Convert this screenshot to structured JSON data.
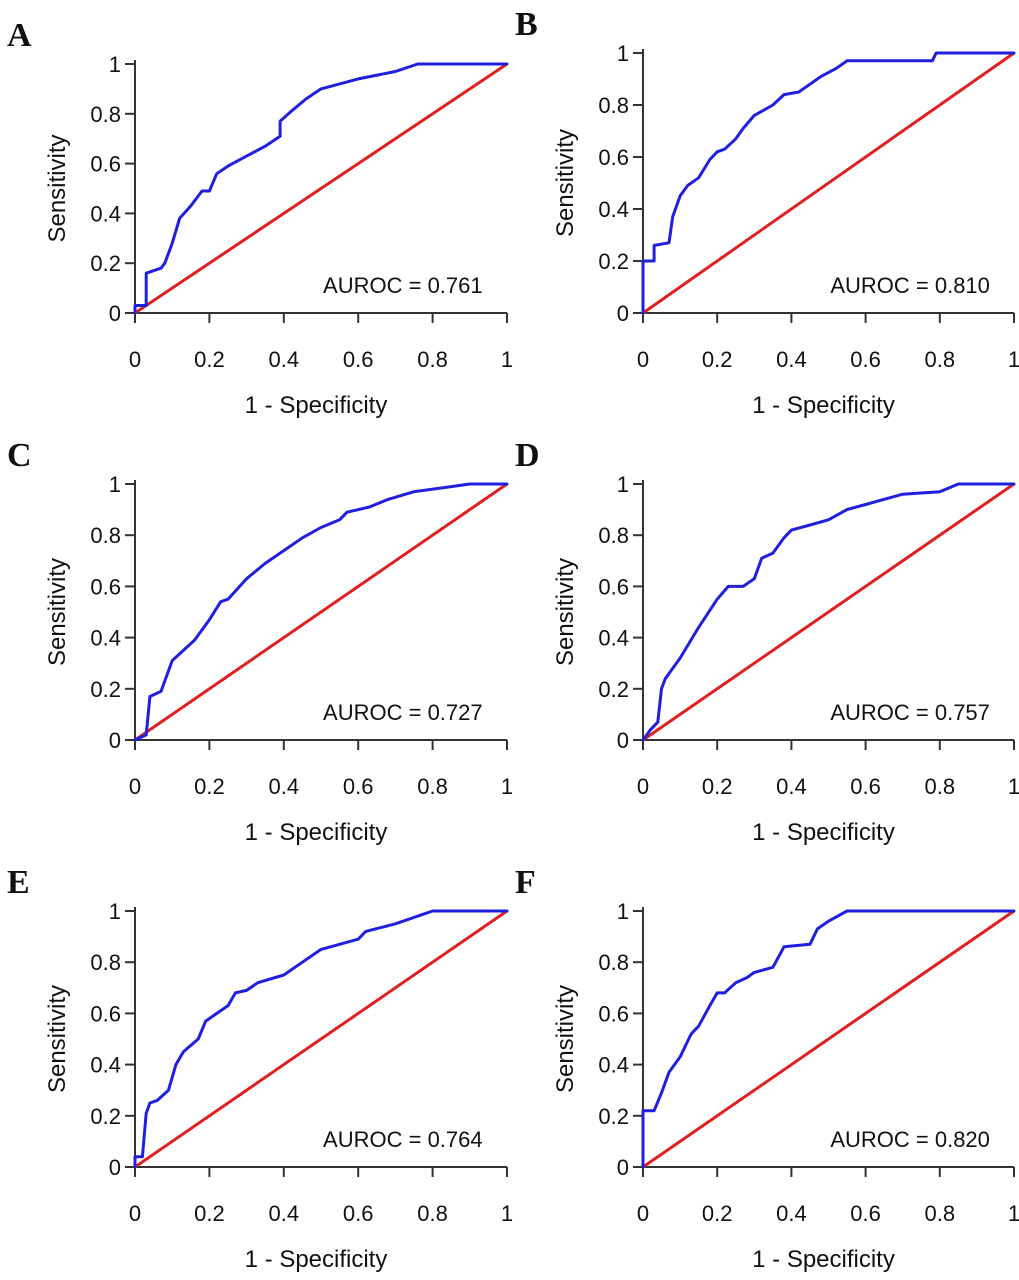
{
  "colors": {
    "roc": "#1f1fe0",
    "reference": "#e02020",
    "axis": "#333333"
  },
  "chart_data": [
    {
      "type": "line",
      "panel": "A",
      "annotation": "AUROC = 0.761",
      "xlabel": "1 - Specificity",
      "ylabel": "Sensitivity",
      "xlim": [
        0,
        1
      ],
      "ylim": [
        0,
        1
      ],
      "xticks": [
        "0",
        "0.2",
        "0.4",
        "0.6",
        "0.8",
        "1"
      ],
      "yticks": [
        "0",
        "0.2",
        "0.4",
        "0.6",
        "0.8",
        "1"
      ],
      "grid": false,
      "series": [
        {
          "values": [
            [
              0,
              0
            ],
            [
              0,
              0.03
            ],
            [
              0.03,
              0.03
            ],
            [
              0.03,
              0.16
            ],
            [
              0.05,
              0.17
            ],
            [
              0.07,
              0.18
            ],
            [
              0.08,
              0.2
            ],
            [
              0.1,
              0.28
            ],
            [
              0.12,
              0.38
            ],
            [
              0.15,
              0.43
            ],
            [
              0.18,
              0.49
            ],
            [
              0.2,
              0.49
            ],
            [
              0.22,
              0.56
            ],
            [
              0.25,
              0.59
            ],
            [
              0.3,
              0.63
            ],
            [
              0.35,
              0.67
            ],
            [
              0.39,
              0.71
            ],
            [
              0.39,
              0.77
            ],
            [
              0.42,
              0.81
            ],
            [
              0.46,
              0.86
            ],
            [
              0.5,
              0.9
            ],
            [
              0.55,
              0.92
            ],
            [
              0.6,
              0.94
            ],
            [
              0.7,
              0.97
            ],
            [
              0.76,
              1
            ],
            [
              1,
              1
            ]
          ]
        },
        {
          "values": [
            [
              0,
              0
            ],
            [
              1,
              1
            ]
          ]
        }
      ]
    },
    {
      "type": "line",
      "panel": "B",
      "annotation": "AUROC = 0.810",
      "xlabel": "1 - Specificity",
      "ylabel": "Sensitivity",
      "xlim": [
        0,
        1
      ],
      "ylim": [
        0,
        1
      ],
      "xticks": [
        "0",
        "0.2",
        "0.4",
        "0.6",
        "0.8",
        "1"
      ],
      "yticks": [
        "0",
        "0.2",
        "0.4",
        "0.6",
        "0.8",
        "1"
      ],
      "grid": false,
      "series": [
        {
          "values": [
            [
              0,
              0
            ],
            [
              0,
              0.2
            ],
            [
              0.03,
              0.2
            ],
            [
              0.03,
              0.26
            ],
            [
              0.07,
              0.27
            ],
            [
              0.08,
              0.37
            ],
            [
              0.1,
              0.45
            ],
            [
              0.12,
              0.49
            ],
            [
              0.15,
              0.52
            ],
            [
              0.18,
              0.59
            ],
            [
              0.2,
              0.62
            ],
            [
              0.22,
              0.63
            ],
            [
              0.25,
              0.67
            ],
            [
              0.27,
              0.71
            ],
            [
              0.3,
              0.76
            ],
            [
              0.35,
              0.8
            ],
            [
              0.38,
              0.84
            ],
            [
              0.42,
              0.85
            ],
            [
              0.45,
              0.88
            ],
            [
              0.48,
              0.91
            ],
            [
              0.52,
              0.94
            ],
            [
              0.55,
              0.97
            ],
            [
              0.78,
              0.97
            ],
            [
              0.79,
              1
            ],
            [
              1,
              1
            ]
          ]
        },
        {
          "values": [
            [
              0,
              0
            ],
            [
              1,
              1
            ]
          ]
        }
      ]
    },
    {
      "type": "line",
      "panel": "C",
      "annotation": "AUROC = 0.727",
      "xlabel": "1 - Specificity",
      "ylabel": "Sensitivity",
      "xlim": [
        0,
        1
      ],
      "ylim": [
        0,
        1
      ],
      "xticks": [
        "0",
        "0.2",
        "0.4",
        "0.6",
        "0.8",
        "1"
      ],
      "yticks": [
        "0",
        "0.2",
        "0.4",
        "0.6",
        "0.8",
        "1"
      ],
      "grid": false,
      "series": [
        {
          "values": [
            [
              0,
              0
            ],
            [
              0.03,
              0.02
            ],
            [
              0.04,
              0.17
            ],
            [
              0.07,
              0.19
            ],
            [
              0.09,
              0.27
            ],
            [
              0.1,
              0.31
            ],
            [
              0.13,
              0.35
            ],
            [
              0.16,
              0.39
            ],
            [
              0.2,
              0.47
            ],
            [
              0.23,
              0.54
            ],
            [
              0.25,
              0.55
            ],
            [
              0.3,
              0.63
            ],
            [
              0.35,
              0.69
            ],
            [
              0.4,
              0.74
            ],
            [
              0.45,
              0.79
            ],
            [
              0.5,
              0.83
            ],
            [
              0.55,
              0.86
            ],
            [
              0.57,
              0.89
            ],
            [
              0.63,
              0.91
            ],
            [
              0.68,
              0.94
            ],
            [
              0.75,
              0.97
            ],
            [
              0.85,
              0.99
            ],
            [
              0.9,
              1
            ],
            [
              1,
              1
            ]
          ]
        },
        {
          "values": [
            [
              0,
              0
            ],
            [
              1,
              1
            ]
          ]
        }
      ]
    },
    {
      "type": "line",
      "panel": "D",
      "annotation": "AUROC = 0.757",
      "xlabel": "1 - Specificity",
      "ylabel": "Sensitivity",
      "xlim": [
        0,
        1
      ],
      "ylim": [
        0,
        1
      ],
      "xticks": [
        "0",
        "0.2",
        "0.4",
        "0.6",
        "0.8",
        "1"
      ],
      "yticks": [
        "0",
        "0.2",
        "0.4",
        "0.6",
        "0.8",
        "1"
      ],
      "grid": false,
      "series": [
        {
          "values": [
            [
              0,
              0
            ],
            [
              0.02,
              0.04
            ],
            [
              0.04,
              0.07
            ],
            [
              0.05,
              0.2
            ],
            [
              0.06,
              0.24
            ],
            [
              0.1,
              0.32
            ],
            [
              0.15,
              0.44
            ],
            [
              0.2,
              0.55
            ],
            [
              0.23,
              0.6
            ],
            [
              0.27,
              0.6
            ],
            [
              0.3,
              0.63
            ],
            [
              0.32,
              0.71
            ],
            [
              0.35,
              0.73
            ],
            [
              0.38,
              0.79
            ],
            [
              0.4,
              0.82
            ],
            [
              0.45,
              0.84
            ],
            [
              0.5,
              0.86
            ],
            [
              0.55,
              0.9
            ],
            [
              0.6,
              0.92
            ],
            [
              0.7,
              0.96
            ],
            [
              0.8,
              0.97
            ],
            [
              0.85,
              1
            ],
            [
              1,
              1
            ]
          ]
        },
        {
          "values": [
            [
              0,
              0
            ],
            [
              1,
              1
            ]
          ]
        }
      ]
    },
    {
      "type": "line",
      "panel": "E",
      "annotation": "AUROC = 0.764",
      "xlabel": "1 - Specificity",
      "ylabel": "Sensitivity",
      "xlim": [
        0,
        1
      ],
      "ylim": [
        0,
        1
      ],
      "xticks": [
        "0",
        "0.2",
        "0.4",
        "0.6",
        "0.8",
        "1"
      ],
      "yticks": [
        "0",
        "0.2",
        "0.4",
        "0.6",
        "0.8",
        "1"
      ],
      "grid": false,
      "series": [
        {
          "values": [
            [
              0,
              0
            ],
            [
              0,
              0.04
            ],
            [
              0.02,
              0.04
            ],
            [
              0.03,
              0.21
            ],
            [
              0.04,
              0.25
            ],
            [
              0.06,
              0.26
            ],
            [
              0.09,
              0.3
            ],
            [
              0.11,
              0.4
            ],
            [
              0.13,
              0.45
            ],
            [
              0.17,
              0.5
            ],
            [
              0.19,
              0.57
            ],
            [
              0.22,
              0.6
            ],
            [
              0.25,
              0.63
            ],
            [
              0.27,
              0.68
            ],
            [
              0.3,
              0.69
            ],
            [
              0.33,
              0.72
            ],
            [
              0.4,
              0.75
            ],
            [
              0.45,
              0.8
            ],
            [
              0.5,
              0.85
            ],
            [
              0.6,
              0.89
            ],
            [
              0.62,
              0.92
            ],
            [
              0.7,
              0.95
            ],
            [
              0.78,
              0.99
            ],
            [
              0.8,
              1
            ],
            [
              1,
              1
            ]
          ]
        },
        {
          "values": [
            [
              0,
              0
            ],
            [
              1,
              1
            ]
          ]
        }
      ]
    },
    {
      "type": "line",
      "panel": "F",
      "annotation": "AUROC = 0.820",
      "xlabel": "1 - Specificity",
      "ylabel": "Sensitivity",
      "xlim": [
        0,
        1
      ],
      "ylim": [
        0,
        1
      ],
      "xticks": [
        "0",
        "0.2",
        "0.4",
        "0.6",
        "0.8",
        "1"
      ],
      "yticks": [
        "0",
        "0.2",
        "0.4",
        "0.6",
        "0.8",
        "1"
      ],
      "grid": false,
      "series": [
        {
          "values": [
            [
              0,
              0
            ],
            [
              0,
              0.22
            ],
            [
              0.03,
              0.22
            ],
            [
              0.05,
              0.29
            ],
            [
              0.07,
              0.37
            ],
            [
              0.1,
              0.43
            ],
            [
              0.13,
              0.52
            ],
            [
              0.15,
              0.55
            ],
            [
              0.18,
              0.63
            ],
            [
              0.2,
              0.68
            ],
            [
              0.22,
              0.68
            ],
            [
              0.25,
              0.72
            ],
            [
              0.28,
              0.74
            ],
            [
              0.3,
              0.76
            ],
            [
              0.35,
              0.78
            ],
            [
              0.38,
              0.86
            ],
            [
              0.45,
              0.87
            ],
            [
              0.47,
              0.93
            ],
            [
              0.5,
              0.96
            ],
            [
              0.55,
              1
            ],
            [
              1,
              1
            ]
          ]
        },
        {
          "values": [
            [
              0,
              0
            ],
            [
              1,
              1
            ]
          ]
        }
      ]
    }
  ]
}
